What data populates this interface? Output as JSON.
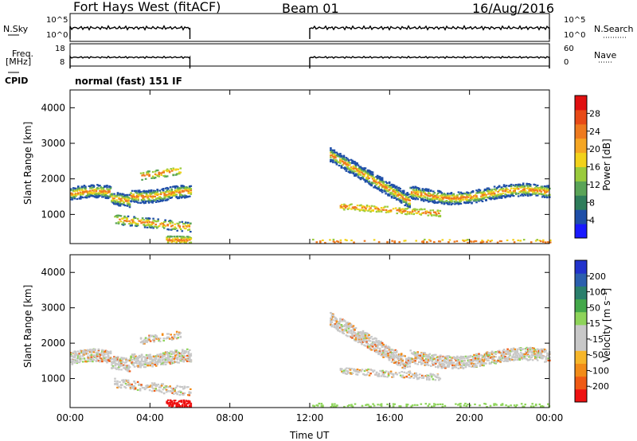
{
  "header": {
    "station": "Fort Hays West (fitACF)",
    "beam": "Beam 01",
    "date": "16/Aug/2016"
  },
  "params": {
    "nsky_label": "N.Sky",
    "nsky_ticks": [
      "10^5",
      "10^0"
    ],
    "nsearch_label": "N.Search",
    "nsearch_ticks": [
      "10^5",
      "10^0"
    ],
    "freq_label": "Freq.",
    "freq_unit": "[MHz]",
    "freq_ticks": [
      "18",
      "8"
    ],
    "nave_label": "Nave",
    "nave_ticks": [
      "60",
      "0"
    ],
    "cpid_label": "CPID",
    "cpid_value": "normal (fast) 151 IF"
  },
  "colors": {
    "power_scale": [
      "#1a1aff",
      "#1f4fa8",
      "#2e7d5b",
      "#5aa457",
      "#9acb3c",
      "#f2d21b",
      "#f5a623",
      "#ee7a1f",
      "#e84a17",
      "#e01010"
    ],
    "velocity_scale": [
      "#ee1111",
      "#ef5a14",
      "#f28c18",
      "#f6b62a",
      "#c8c8c8",
      "#c8c8c8",
      "#8ed45a",
      "#43a84a",
      "#2a7f6c",
      "#2b5fae",
      "#2233cc"
    ]
  },
  "chart_data": [
    {
      "type": "heatmap",
      "title": "",
      "xlabel": "Time UT",
      "ylabel": "Slant Range [km]",
      "xticks": [
        "00:00",
        "04:00",
        "08:00",
        "12:00",
        "16:00",
        "20:00",
        "00:00"
      ],
      "yticks": [
        "1000",
        "2000",
        "3000",
        "4000"
      ],
      "ylim": [
        180,
        4500
      ],
      "colorbar_label": "Power [dB]",
      "colorbar_ticks": [
        "4",
        "8",
        "12",
        "16",
        "20",
        "24",
        "28"
      ],
      "data_gap_hours": [
        6.0,
        12.0
      ]
    },
    {
      "type": "heatmap",
      "title": "",
      "xlabel": "Time UT",
      "ylabel": "Slant Range [km]",
      "xticks": [
        "00:00",
        "04:00",
        "08:00",
        "12:00",
        "16:00",
        "20:00",
        "00:00"
      ],
      "yticks": [
        "1000",
        "2000",
        "3000",
        "4000"
      ],
      "ylim": [
        180,
        4500
      ],
      "colorbar_label": "Velocity [m s⁻¹]",
      "colorbar_ticks": [
        "200",
        "100",
        "50",
        "15",
        "-15",
        "-50",
        "-100",
        "-200"
      ],
      "data_gap_hours": [
        6.0,
        12.0
      ]
    }
  ]
}
